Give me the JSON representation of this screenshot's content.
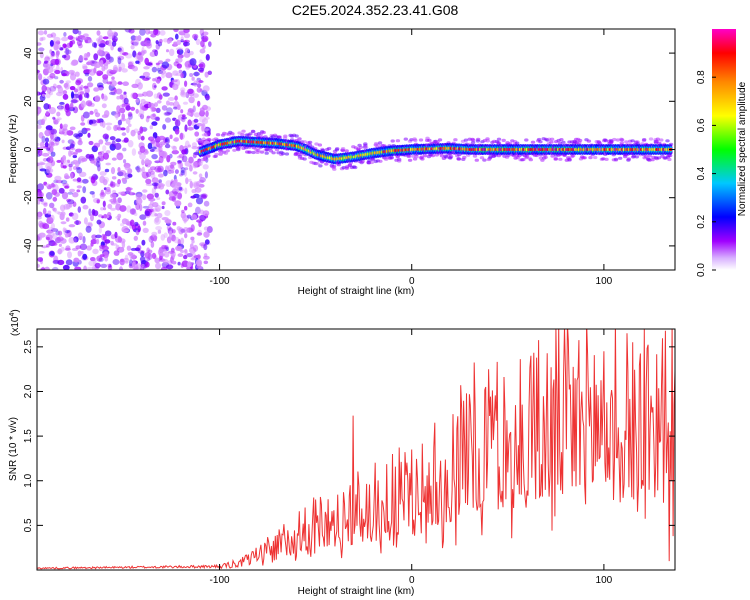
{
  "title": "C2E5.2024.352.23.41.G08",
  "chart_data": [
    {
      "type": "heatmap",
      "xlabel": "Height of straight line (km)",
      "ylabel": "Frequency (Hz)",
      "xlim": [
        -195,
        137
      ],
      "ylim": [
        -50,
        50
      ],
      "x_ticks": [
        -100,
        0,
        100
      ],
      "y_ticks": [
        -40,
        -20,
        0,
        20,
        40
      ],
      "grid": false,
      "colorbar": {
        "label": "Normalized spectral amplitude",
        "range": [
          0,
          1
        ],
        "ticks": [
          "0.0",
          "0.2",
          "0.4",
          "0.6",
          "0.8"
        ],
        "tick_values": [
          0.0,
          0.2,
          0.4,
          0.6,
          0.8
        ],
        "colors": [
          "#ffffff",
          "#a000ff",
          "#0000ff",
          "#00c8ff",
          "#00ff00",
          "#ffff00",
          "#ff8800",
          "#ff0000",
          "#ff00c8"
        ]
      },
      "noise_region_x": [
        -195,
        -105
      ],
      "ridge": {
        "x": [
          -110,
          -100,
          -90,
          -80,
          -70,
          -60,
          -55,
          -50,
          -45,
          -40,
          -35,
          -30,
          -20,
          -10,
          0,
          10,
          20,
          30,
          40,
          60,
          80,
          100,
          120,
          135
        ],
        "y": [
          -1,
          2,
          3.5,
          3,
          2.5,
          1.5,
          0,
          -2,
          -3,
          -4,
          -3.5,
          -3,
          -1.5,
          -0.5,
          0,
          0.3,
          0.5,
          0,
          0,
          0,
          0,
          0,
          0,
          0
        ],
        "peak_amplitude": 1.0
      }
    },
    {
      "type": "line",
      "xlabel": "Height of straight line (km)",
      "ylabel": "SNR (10 * v/v)",
      "y_scale_note": "(x10",
      "y_scale_exp": "4",
      "y_scale": 10000,
      "xlim": [
        -195,
        137
      ],
      "ylim": [
        0,
        2.7
      ],
      "x_ticks": [
        -100,
        0,
        100
      ],
      "y_ticks": [
        "0.5",
        "1.0",
        "1.5",
        "2.0",
        "2.5"
      ],
      "y_tick_values": [
        0.5,
        1.0,
        1.5,
        2.0,
        2.5
      ],
      "grid": false,
      "series": [
        {
          "color": "#ee3333",
          "envelope": {
            "x": [
              -195,
              -100,
              -90,
              -80,
              -70,
              -60,
              -50,
              -40,
              -30,
              -20,
              -10,
              0,
              10,
              20,
              30,
              40,
              50,
              60,
              80,
              100,
              120,
              135
            ],
            "y": [
              0.02,
              0.04,
              0.1,
              0.2,
              0.35,
              0.55,
              0.65,
              0.7,
              0.8,
              0.9,
              1.0,
              1.05,
              1.2,
              1.5,
              1.7,
              1.8,
              1.9,
              2.0,
              2.1,
              2.1,
              2.2,
              2.1
            ]
          },
          "spikes": [
            {
              "x": -30.5,
              "y": 1.73
            },
            {
              "x": -32,
              "y": 0.95
            },
            {
              "x": -10,
              "y": 1.3
            },
            {
              "x": 0,
              "y": 1.35
            },
            {
              "x": 12,
              "y": 1.65
            },
            {
              "x": 30,
              "y": 1.97
            },
            {
              "x": 40,
              "y": 2.25
            },
            {
              "x": 62,
              "y": 2.4
            },
            {
              "x": 100,
              "y": 2.45
            },
            {
              "x": 132,
              "y": 2.68
            },
            {
              "x": 134,
              "y": 0.1
            }
          ]
        }
      ]
    }
  ]
}
